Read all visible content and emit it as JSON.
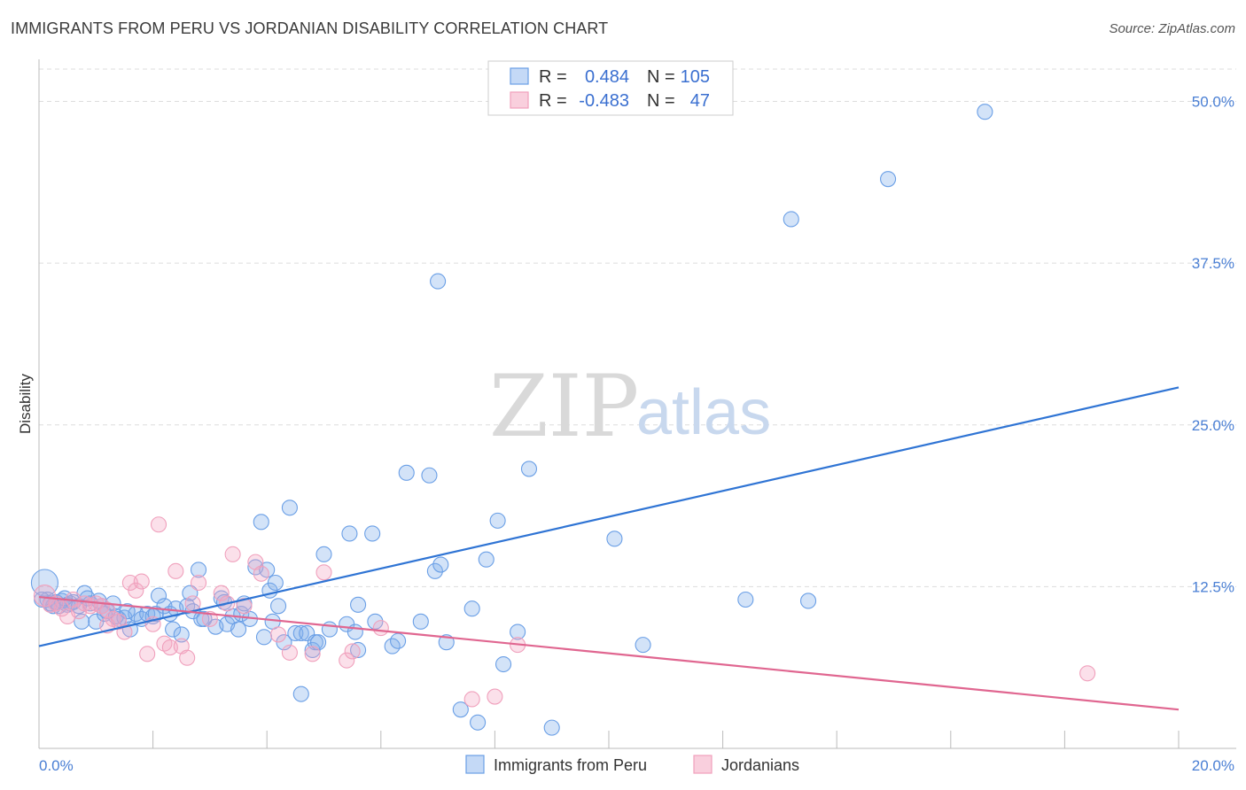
{
  "header": {
    "title": "IMMIGRANTS FROM PERU VS JORDANIAN DISABILITY CORRELATION CHART",
    "source": "Source: ZipAtlas.com"
  },
  "watermark": {
    "zip": "ZIP",
    "atlas": "atlas"
  },
  "colors": {
    "blue": "#6a9fe6",
    "blue_line": "#2f74d4",
    "pink": "#f0a0bc",
    "pink_line": "#e06690",
    "grid": "#dddddd"
  },
  "legend": {
    "rows": [
      {
        "r_label": "R = ",
        "r_value": "0.484",
        "n_label": "N = ",
        "n_value": "105",
        "color": "blue"
      },
      {
        "r_label": "R = ",
        "r_value": "-0.483",
        "n_label": "N = ",
        "n_value": "47",
        "color": "pink"
      }
    ]
  },
  "chart_data": {
    "type": "scatter",
    "title": "IMMIGRANTS FROM PERU VS JORDANIAN DISABILITY CORRELATION CHART",
    "xlabel": "",
    "ylabel": "Disability",
    "xlim": [
      0,
      20
    ],
    "ylim": [
      0,
      50
    ],
    "x_tick_labels": [
      "0.0%",
      "20.0%"
    ],
    "y_ticks": [
      12.5,
      25.0,
      37.5,
      50.0
    ],
    "y_tick_labels": [
      "12.5%",
      "25.0%",
      "37.5%",
      "50.0%"
    ],
    "grid": true,
    "legend_position": "top-center",
    "series": [
      {
        "name": "Immigrants from Peru",
        "color": "blue",
        "trend": {
          "x": [
            0,
            20
          ],
          "y": [
            7.9,
            27.9
          ]
        },
        "points": [
          [
            0.1,
            12.8
          ],
          [
            0.15,
            11.5
          ],
          [
            0.2,
            11.2
          ],
          [
            0.25,
            11.0
          ],
          [
            0.3,
            11.3
          ],
          [
            0.35,
            11.0
          ],
          [
            0.4,
            11.4
          ],
          [
            0.5,
            11.1
          ],
          [
            0.55,
            11.2
          ],
          [
            0.6,
            11.3
          ],
          [
            0.7,
            11.0
          ],
          [
            0.75,
            9.8
          ],
          [
            0.8,
            12.0
          ],
          [
            0.85,
            11.6
          ],
          [
            0.9,
            11.2
          ],
          [
            1.0,
            9.8
          ],
          [
            1.05,
            11.4
          ],
          [
            1.1,
            11.0
          ],
          [
            1.2,
            10.6
          ],
          [
            1.3,
            11.2
          ],
          [
            1.4,
            10.0
          ],
          [
            1.5,
            10.1
          ],
          [
            1.6,
            9.2
          ],
          [
            1.7,
            10.4
          ],
          [
            1.8,
            10.0
          ],
          [
            1.9,
            10.4
          ],
          [
            2.0,
            10.2
          ],
          [
            2.1,
            11.8
          ],
          [
            2.2,
            11.0
          ],
          [
            2.3,
            10.4
          ],
          [
            2.35,
            9.2
          ],
          [
            2.4,
            10.8
          ],
          [
            2.5,
            8.8
          ],
          [
            2.6,
            11.0
          ],
          [
            2.65,
            12.0
          ],
          [
            2.7,
            10.6
          ],
          [
            2.8,
            13.8
          ],
          [
            2.85,
            10.0
          ],
          [
            2.9,
            10.0
          ],
          [
            3.1,
            9.4
          ],
          [
            3.2,
            11.6
          ],
          [
            3.25,
            11.3
          ],
          [
            3.3,
            9.6
          ],
          [
            3.4,
            10.2
          ],
          [
            3.5,
            9.2
          ],
          [
            3.55,
            10.4
          ],
          [
            3.6,
            11.2
          ],
          [
            3.7,
            10.0
          ],
          [
            3.8,
            14.0
          ],
          [
            3.9,
            17.5
          ],
          [
            3.95,
            8.6
          ],
          [
            4.0,
            13.8
          ],
          [
            4.05,
            12.2
          ],
          [
            4.1,
            9.8
          ],
          [
            4.15,
            12.8
          ],
          [
            4.2,
            11.0
          ],
          [
            4.3,
            8.2
          ],
          [
            4.4,
            18.6
          ],
          [
            4.5,
            8.9
          ],
          [
            4.6,
            8.9
          ],
          [
            4.6,
            4.2
          ],
          [
            4.7,
            8.9
          ],
          [
            4.8,
            7.6
          ],
          [
            4.85,
            8.2
          ],
          [
            4.9,
            8.2
          ],
          [
            5.0,
            15.0
          ],
          [
            5.1,
            9.2
          ],
          [
            5.4,
            9.6
          ],
          [
            5.45,
            16.6
          ],
          [
            5.55,
            9.0
          ],
          [
            5.6,
            11.1
          ],
          [
            5.6,
            7.6
          ],
          [
            5.85,
            16.6
          ],
          [
            5.9,
            9.8
          ],
          [
            6.2,
            7.9
          ],
          [
            6.3,
            8.3
          ],
          [
            6.45,
            21.3
          ],
          [
            6.7,
            9.8
          ],
          [
            6.85,
            21.1
          ],
          [
            6.95,
            13.7
          ],
          [
            7.05,
            14.2
          ],
          [
            7.0,
            36.1
          ],
          [
            7.15,
            8.2
          ],
          [
            7.4,
            3.0
          ],
          [
            7.6,
            10.8
          ],
          [
            7.7,
            2.0
          ],
          [
            7.85,
            14.6
          ],
          [
            8.05,
            17.6
          ],
          [
            8.15,
            6.5
          ],
          [
            8.4,
            9.0
          ],
          [
            8.6,
            21.6
          ],
          [
            9.0,
            1.6
          ],
          [
            10.1,
            16.2
          ],
          [
            10.6,
            8.0
          ],
          [
            12.4,
            11.5
          ],
          [
            13.2,
            40.9
          ],
          [
            13.5,
            11.4
          ],
          [
            14.9,
            44.0
          ],
          [
            16.6,
            49.2
          ],
          [
            0.05,
            11.5
          ],
          [
            0.45,
            11.6
          ],
          [
            1.15,
            10.4
          ],
          [
            1.35,
            10.2
          ],
          [
            1.55,
            10.6
          ],
          [
            2.05,
            10.4
          ]
        ]
      },
      {
        "name": "Jordanians",
        "color": "pink",
        "trend": {
          "x": [
            0,
            20
          ],
          "y": [
            11.7,
            3.0
          ]
        },
        "points": [
          [
            0.1,
            11.8
          ],
          [
            0.2,
            11.1
          ],
          [
            0.3,
            11.2
          ],
          [
            0.4,
            10.8
          ],
          [
            0.5,
            10.2
          ],
          [
            0.6,
            11.5
          ],
          [
            0.7,
            10.6
          ],
          [
            0.8,
            11.2
          ],
          [
            0.9,
            11.0
          ],
          [
            1.0,
            11.2
          ],
          [
            1.1,
            11.0
          ],
          [
            1.2,
            10.7
          ],
          [
            1.3,
            10.0
          ],
          [
            1.4,
            9.8
          ],
          [
            1.5,
            9.0
          ],
          [
            1.6,
            12.8
          ],
          [
            1.7,
            12.2
          ],
          [
            1.8,
            12.9
          ],
          [
            1.9,
            7.3
          ],
          [
            2.0,
            9.6
          ],
          [
            2.1,
            17.3
          ],
          [
            2.2,
            8.1
          ],
          [
            2.3,
            7.8
          ],
          [
            2.4,
            13.7
          ],
          [
            2.5,
            7.9
          ],
          [
            2.6,
            7.0
          ],
          [
            2.7,
            11.2
          ],
          [
            2.8,
            12.8
          ],
          [
            3.0,
            10.0
          ],
          [
            3.2,
            12.0
          ],
          [
            3.3,
            11.2
          ],
          [
            3.4,
            15.0
          ],
          [
            3.6,
            11.0
          ],
          [
            3.8,
            14.4
          ],
          [
            3.9,
            13.5
          ],
          [
            4.2,
            8.8
          ],
          [
            4.4,
            7.4
          ],
          [
            4.8,
            7.3
          ],
          [
            5.0,
            13.6
          ],
          [
            5.4,
            6.8
          ],
          [
            5.5,
            7.5
          ],
          [
            6.0,
            9.3
          ],
          [
            7.6,
            3.8
          ],
          [
            8.0,
            4.0
          ],
          [
            8.4,
            8.0
          ],
          [
            1.2,
            9.5
          ],
          [
            18.4,
            5.8
          ]
        ]
      }
    ]
  },
  "bottom_legend": {
    "items": [
      {
        "label": "Immigrants from Peru",
        "color": "blue"
      },
      {
        "label": "Jordanians",
        "color": "pink"
      }
    ]
  }
}
